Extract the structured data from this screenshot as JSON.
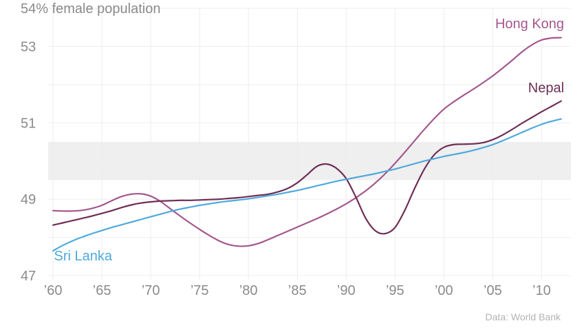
{
  "chart_data": {
    "type": "line",
    "ylabel": "54% female population",
    "ylim": [
      47,
      54
    ],
    "xlim": [
      1959.5,
      2013
    ],
    "y_ticks": [
      {
        "value": 53,
        "label": "53"
      },
      {
        "value": 51,
        "label": "51"
      },
      {
        "value": 49,
        "label": "49"
      },
      {
        "value": 47,
        "label": "47"
      }
    ],
    "x_ticks": [
      {
        "value": 1960,
        "label": "’60"
      },
      {
        "value": 1965,
        "label": "’65"
      },
      {
        "value": 1970,
        "label": "’70"
      },
      {
        "value": 1975,
        "label": "’75"
      },
      {
        "value": 1980,
        "label": "’80"
      },
      {
        "value": 1985,
        "label": "’85"
      },
      {
        "value": 1990,
        "label": "’90"
      },
      {
        "value": 1995,
        "label": "’95"
      },
      {
        "value": 2000,
        "label": "’00"
      },
      {
        "value": 2005,
        "label": "’05"
      },
      {
        "value": 2010,
        "label": "’10"
      }
    ],
    "band": {
      "y0": 49.5,
      "y1": 50.5,
      "color": "#efefef"
    },
    "grid": true,
    "series": [
      {
        "name": "Hong Kong",
        "color": "#a3578f",
        "x": [
          1960,
          1961,
          1962,
          1963,
          1964,
          1965,
          1966,
          1967,
          1968,
          1969,
          1970,
          1971,
          1972,
          1973,
          1974,
          1975,
          1976,
          1977,
          1978,
          1979,
          1980,
          1981,
          1982,
          1983,
          1984,
          1985,
          1986,
          1987,
          1988,
          1989,
          1990,
          1991,
          1992,
          1993,
          1994,
          1995,
          1996,
          1997,
          1998,
          1999,
          2000,
          2001,
          2002,
          2003,
          2004,
          2005,
          2006,
          2007,
          2008,
          2009,
          2010,
          2011,
          2012
        ],
        "y": [
          48.7,
          48.69,
          48.69,
          48.71,
          48.76,
          48.84,
          48.96,
          49.07,
          49.13,
          49.14,
          49.08,
          48.94,
          48.75,
          48.56,
          48.38,
          48.21,
          48.05,
          47.91,
          47.81,
          47.77,
          47.78,
          47.84,
          47.94,
          48.05,
          48.16,
          48.27,
          48.38,
          48.49,
          48.61,
          48.74,
          48.88,
          49.04,
          49.22,
          49.43,
          49.67,
          49.94,
          50.23,
          50.53,
          50.83,
          51.11,
          51.36,
          51.55,
          51.72,
          51.88,
          52.05,
          52.23,
          52.43,
          52.64,
          52.86,
          53.04,
          53.17,
          53.22,
          53.23
        ]
      },
      {
        "name": "Nepal",
        "color": "#6e2e55",
        "x": [
          1960,
          1961,
          1962,
          1963,
          1964,
          1965,
          1966,
          1967,
          1968,
          1969,
          1970,
          1971,
          1972,
          1973,
          1974,
          1975,
          1976,
          1977,
          1978,
          1979,
          1980,
          1981,
          1982,
          1983,
          1984,
          1985,
          1986,
          1987,
          1988,
          1989,
          1990,
          1991,
          1992,
          1993,
          1994,
          1995,
          1996,
          1997,
          1998,
          1999,
          2000,
          2001,
          2002,
          2003,
          2004,
          2005,
          2006,
          2007,
          2008,
          2009,
          2010,
          2011,
          2012
        ],
        "y": [
          48.32,
          48.38,
          48.44,
          48.5,
          48.56,
          48.63,
          48.7,
          48.78,
          48.85,
          48.9,
          48.93,
          48.95,
          48.96,
          48.97,
          48.97,
          48.98,
          48.99,
          49.0,
          49.02,
          49.04,
          49.07,
          49.1,
          49.13,
          49.19,
          49.28,
          49.43,
          49.64,
          49.86,
          49.92,
          49.81,
          49.54,
          49.05,
          48.5,
          48.17,
          48.1,
          48.26,
          48.71,
          49.28,
          49.79,
          50.16,
          50.36,
          50.43,
          50.44,
          50.45,
          50.48,
          50.56,
          50.68,
          50.83,
          50.99,
          51.14,
          51.29,
          51.43,
          51.57
        ]
      },
      {
        "name": "Sri Lanka",
        "color": "#4ea9dc",
        "x": [
          1960,
          1961,
          1962,
          1963,
          1964,
          1965,
          1966,
          1967,
          1968,
          1969,
          1970,
          1971,
          1972,
          1973,
          1974,
          1975,
          1976,
          1977,
          1978,
          1979,
          1980,
          1981,
          1982,
          1983,
          1984,
          1985,
          1986,
          1987,
          1988,
          1989,
          1990,
          1991,
          1992,
          1993,
          1994,
          1995,
          1996,
          1997,
          1998,
          1999,
          2000,
          2001,
          2002,
          2003,
          2004,
          2005,
          2006,
          2007,
          2008,
          2009,
          2010,
          2011,
          2012
        ],
        "y": [
          47.65,
          47.79,
          47.91,
          48.01,
          48.1,
          48.18,
          48.26,
          48.33,
          48.4,
          48.47,
          48.54,
          48.61,
          48.68,
          48.74,
          48.79,
          48.84,
          48.88,
          48.92,
          48.95,
          48.98,
          49.01,
          49.05,
          49.09,
          49.13,
          49.18,
          49.23,
          49.29,
          49.35,
          49.41,
          49.47,
          49.52,
          49.57,
          49.62,
          49.67,
          49.73,
          49.79,
          49.86,
          49.93,
          50.0,
          50.06,
          50.12,
          50.17,
          50.22,
          50.28,
          50.35,
          50.43,
          50.53,
          50.64,
          50.75,
          50.86,
          50.96,
          51.04,
          51.1
        ]
      }
    ],
    "series_labels": [
      {
        "name": "Hong Kong",
        "color": "#a3578f",
        "anchor": "end"
      },
      {
        "name": "Nepal",
        "color": "#6e2e55",
        "anchor": "end"
      },
      {
        "name": "Sri Lanka",
        "color": "#4ea9dc",
        "anchor": "start"
      }
    ],
    "source": "Data: World Bank"
  }
}
